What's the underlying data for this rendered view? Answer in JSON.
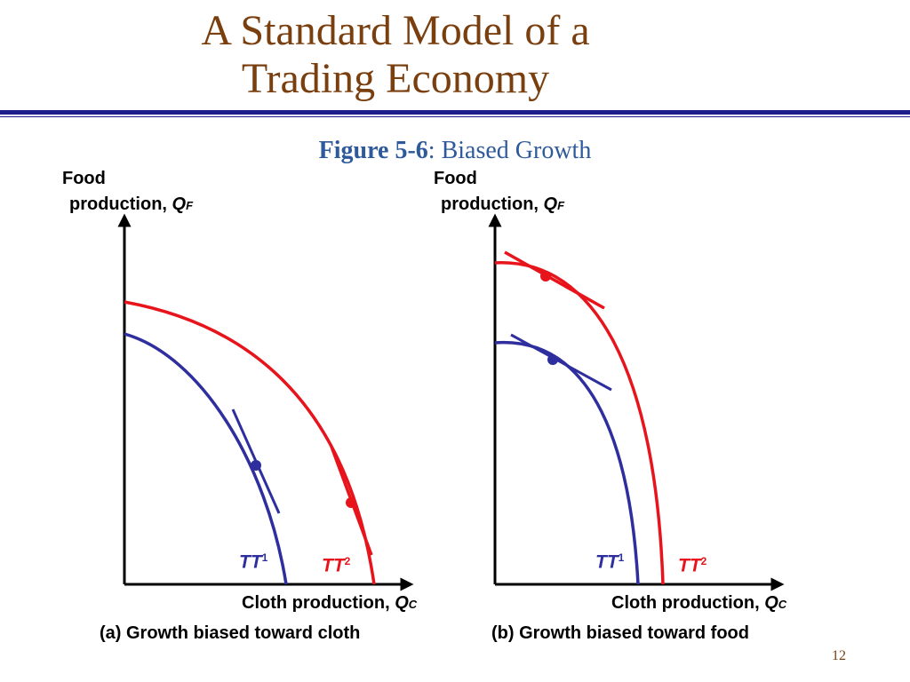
{
  "slide": {
    "title_line1": "A Standard Model of a",
    "title_line2": "Trading Economy",
    "figure_label": "Figure 5-6",
    "figure_sep": ": ",
    "figure_title": "Biased Growth",
    "page_number": "12"
  },
  "panels": [
    {
      "y_axis_line1": "Food",
      "y_axis_line2": "production, ",
      "y_axis_var": "Q",
      "y_axis_sub": "F",
      "x_axis_label": "Cloth production, ",
      "x_axis_var": "Q",
      "x_axis_sub": "C",
      "caption": "(a) Growth biased toward cloth",
      "curve1_label": "TT",
      "curve1_sup": "1",
      "curve2_label": "TT",
      "curve2_sup": "2"
    },
    {
      "y_axis_line1": "Food",
      "y_axis_line2": "production, ",
      "y_axis_var": "Q",
      "y_axis_sub": "F",
      "x_axis_label": "Cloth production, ",
      "x_axis_var": "Q",
      "x_axis_sub": "C",
      "caption": "(b) Growth biased toward food",
      "curve1_label": "TT",
      "curve1_sup": "1",
      "curve2_label": "TT",
      "curve2_sup": "2"
    }
  ],
  "colors": {
    "tt1": "#2e2e9e",
    "tt2": "#e8141c",
    "title": "#7a3f0f",
    "caption": "#2e5a9c"
  }
}
